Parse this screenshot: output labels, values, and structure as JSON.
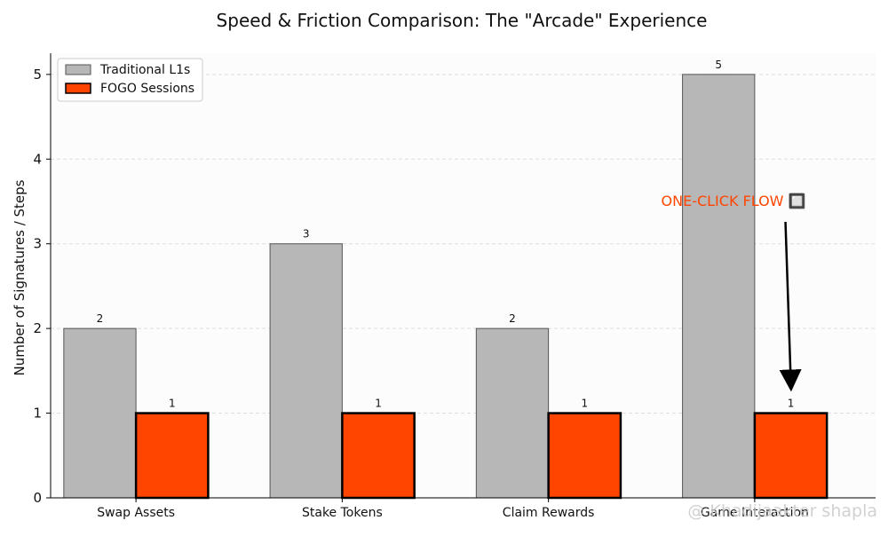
{
  "chart_data": {
    "type": "bar",
    "title": "Speed & Friction Comparison: The \"Arcade\" Experience",
    "xlabel": "",
    "ylabel": "Number of Signatures / Steps",
    "categories": [
      "Swap Assets",
      "Stake Tokens",
      "Claim Rewards",
      "Game Interaction"
    ],
    "series": [
      {
        "name": "Traditional L1s",
        "values": [
          2,
          3,
          2,
          5
        ],
        "color": "#b7b7b7",
        "edge": "#555555"
      },
      {
        "name": "FOGO Sessions",
        "values": [
          1,
          1,
          1,
          1
        ],
        "color": "#ff4500",
        "edge": "#000000"
      }
    ],
    "ylim": [
      0,
      5.25
    ],
    "yticks": [
      0,
      1,
      2,
      3,
      4,
      5
    ],
    "grid": true,
    "legend": "top-left",
    "annotation": {
      "text": "ONE-CLICK FLOW 🔲",
      "color": "#ff4500",
      "target_category": "Game Interaction",
      "target_series": "FOGO Sessions",
      "target_value": 1.3,
      "text_value": 3.5
    }
  },
  "watermark": "@ Khadijaakter shapla"
}
